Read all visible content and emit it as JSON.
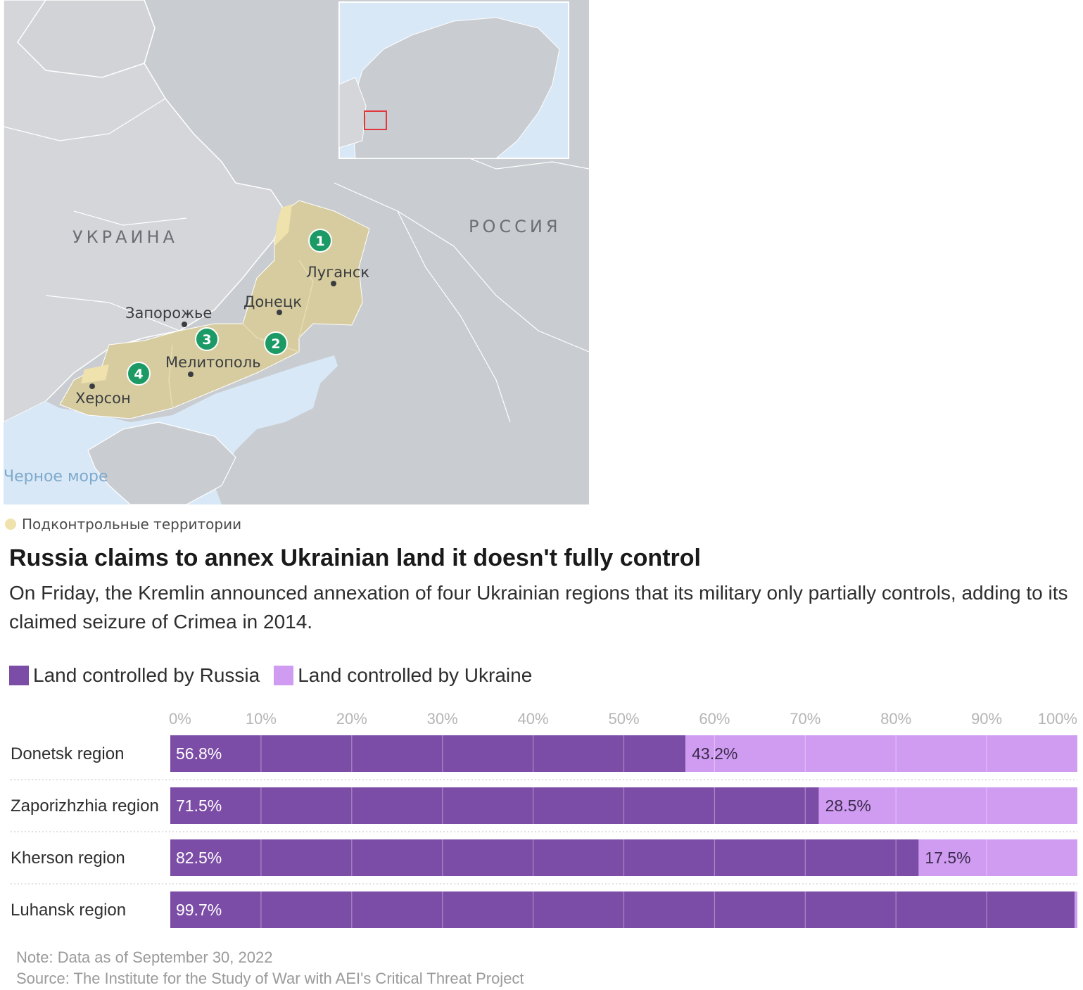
{
  "map": {
    "country_label_ukraine": "УКРАИНА",
    "country_label_russia": "РОССИЯ",
    "sea_label": "Черное море",
    "cities": [
      "Луганск",
      "Донецк",
      "Запорожье",
      "Мелитополь",
      "Херсон"
    ],
    "markers": [
      "1",
      "2",
      "3",
      "4"
    ],
    "legend_label": "Подконтрольные территории",
    "colors": {
      "land": "#c9ccd0",
      "ukraine_land": "#d4d6d9",
      "water": "#d8e8f6",
      "controlled_territory": "#d7cc9f",
      "controlled_territory_light": "#f0e2ad",
      "marker": "#1b9a66",
      "inset_highlight": "#e0383b"
    }
  },
  "headline": "Russia claims to annex Ukrainian land it doesn't fully control",
  "subhead": "On Friday, the Kremlin announced annexation of four Ukrainian regions that its military only partially controls, adding to its claimed seizure of Crimea in 2014.",
  "chart_legend": {
    "russia": "Land controlled by Russia",
    "ukraine": "Land controlled by Ukraine"
  },
  "chart_data": {
    "type": "bar",
    "orientation": "horizontal",
    "stacked": true,
    "categories": [
      "Donetsk region",
      "Zaporizhzhia region",
      "Kherson region",
      "Luhansk region"
    ],
    "series": [
      {
        "name": "Land controlled by Russia",
        "values": [
          56.8,
          71.5,
          82.5,
          99.7
        ],
        "color": "#7c4da6"
      },
      {
        "name": "Land controlled by Ukraine",
        "values": [
          43.2,
          28.5,
          17.5,
          0.3
        ],
        "color": "#cf9cf2"
      }
    ],
    "value_labels": {
      "russia": [
        "56.8%",
        "71.5%",
        "82.5%",
        "99.7%"
      ],
      "ukraine": [
        "43.2%",
        "28.5%",
        "17.5%",
        ""
      ]
    },
    "xlim": [
      0,
      100
    ],
    "xticks": [
      "0%",
      "10%",
      "20%",
      "30%",
      "40%",
      "50%",
      "60%",
      "70%",
      "80%",
      "90%",
      "100%"
    ],
    "grid": true,
    "legend_placement": "top-left"
  },
  "note": "Note: Data as of September 30, 2022",
  "source": "Source: The Institute for the Study of War with AEI's Critical Threat Project"
}
